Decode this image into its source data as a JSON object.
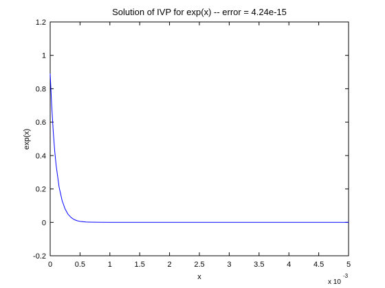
{
  "chart_data": {
    "type": "line",
    "title": "Solution of IVP for exp(x) -- error = 4.24e-15",
    "xlabel": "x",
    "ylabel": "exp(x)",
    "x_scale_note": {
      "base": "x 10",
      "exponent": "-3"
    },
    "xlim": [
      0,
      5
    ],
    "ylim": [
      -0.2,
      1.2
    ],
    "x_unit_multiplier": 0.001,
    "x_ticks": [
      0,
      0.5,
      1,
      1.5,
      2,
      2.5,
      3,
      3.5,
      4,
      4.5,
      5
    ],
    "x_tick_labels": [
      "0",
      "0.5",
      "1",
      "1.5",
      "2",
      "2.5",
      "3",
      "3.5",
      "4",
      "4.5",
      "5"
    ],
    "y_ticks": [
      -0.2,
      0,
      0.2,
      0.4,
      0.6,
      0.8,
      1,
      1.2
    ],
    "y_tick_labels": [
      "-0.2",
      "0",
      "0.2",
      "0.4",
      "0.6",
      "0.8",
      "1",
      "1.2"
    ],
    "grid": false,
    "series": [
      {
        "color": "#0000ff",
        "x": [
          0,
          0.025,
          0.05,
          0.075,
          0.1,
          0.15,
          0.2,
          0.25,
          0.3,
          0.35,
          0.4,
          0.45,
          0.5,
          0.6,
          0.7,
          0.8,
          1,
          1.5,
          2,
          2.5,
          3,
          3.5,
          4,
          4.5,
          5
        ],
        "values": [
          0.89,
          0.7,
          0.55,
          0.43,
          0.34,
          0.21,
          0.13,
          0.08,
          0.048,
          0.029,
          0.017,
          0.01,
          0.006,
          0.002,
          0.001,
          0.0005,
          0,
          0,
          0,
          0,
          0,
          0,
          0,
          0,
          0
        ]
      }
    ]
  }
}
